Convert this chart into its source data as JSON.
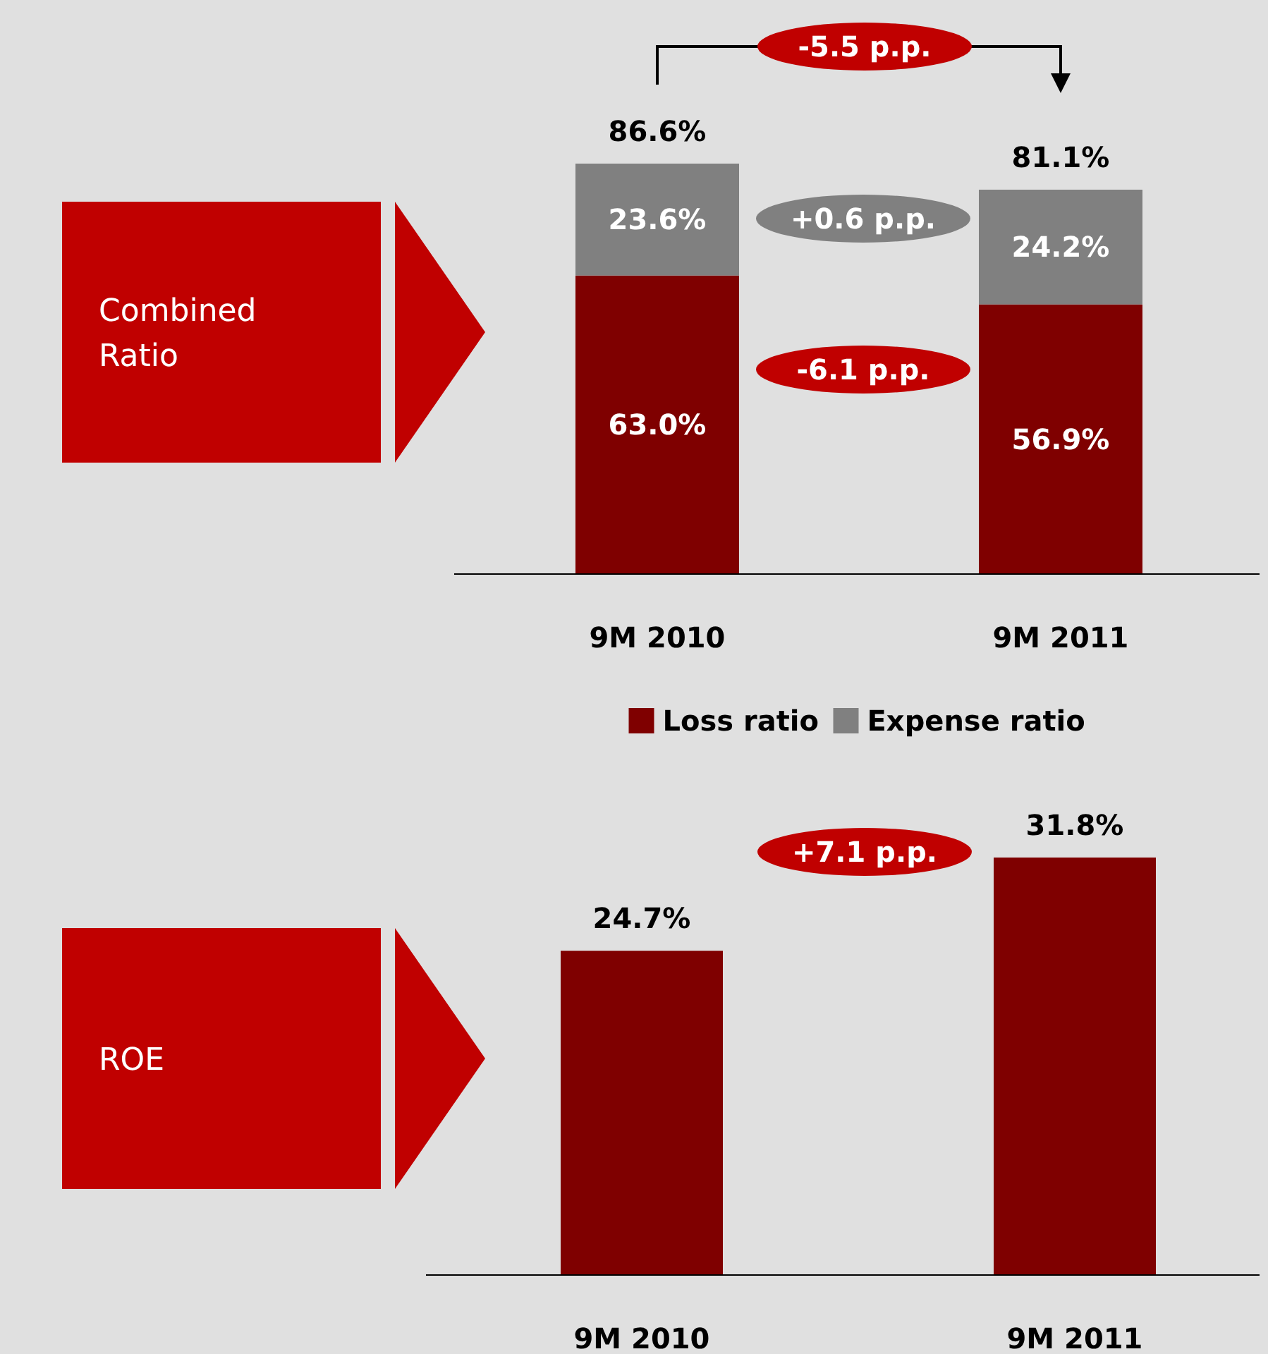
{
  "chart_data": [
    {
      "type": "bar",
      "ylabel": "Combined Ratio",
      "categories": [
        "9M 2010",
        "9M 2011"
      ],
      "stacked": true,
      "legend": "bottom",
      "series": [
        {
          "name": "Loss ratio",
          "color": "#7f0000",
          "values": [
            63.0,
            56.9
          ],
          "value_labels": [
            "63.0%",
            "56.9%"
          ]
        },
        {
          "name": "Expense ratio",
          "color": "#808080",
          "values": [
            23.6,
            24.2
          ],
          "value_labels": [
            "23.6%",
            "24.2%"
          ]
        }
      ],
      "totals": [
        "86.6%",
        "81.1%"
      ],
      "annotations": [
        "-5.5 p.p.",
        "+0.6 p.p.",
        "-6.1 p.p."
      ]
    },
    {
      "type": "bar",
      "ylabel": "ROE",
      "categories": [
        "9M 2010",
        "9M 2011"
      ],
      "series": [
        {
          "color": "#7f0000",
          "values": [
            24.7,
            31.8
          ],
          "value_labels": [
            "24.7%",
            "31.8%"
          ]
        }
      ],
      "annotations": [
        "+7.1 p.p."
      ]
    }
  ]
}
